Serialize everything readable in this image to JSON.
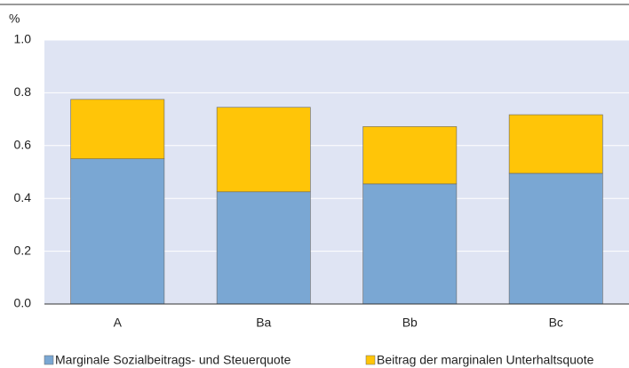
{
  "chart_data": {
    "type": "stacked_bar",
    "y_label": "%",
    "categories": [
      "A",
      "Ba",
      "Bb",
      "Bc"
    ],
    "series": [
      {
        "name": "Marginale Sozialbeitrags- und Steuerquote",
        "color": "#7aa7d3",
        "values": [
          0.55,
          0.425,
          0.455,
          0.495
        ]
      },
      {
        "name": "Beitrag der marginalen Unterhaltsquote",
        "color": "#ffc508",
        "values": [
          0.225,
          0.32,
          0.217,
          0.222
        ]
      }
    ],
    "ylim": [
      0,
      1.0
    ],
    "yticks": [
      {
        "value": 0,
        "label": "0.0"
      },
      0.2,
      0.4,
      0.6,
      0.8,
      {
        "value": 1,
        "label": "1.0"
      }
    ],
    "grid": true,
    "legend": "bottom",
    "background": "#dfe4f3"
  }
}
